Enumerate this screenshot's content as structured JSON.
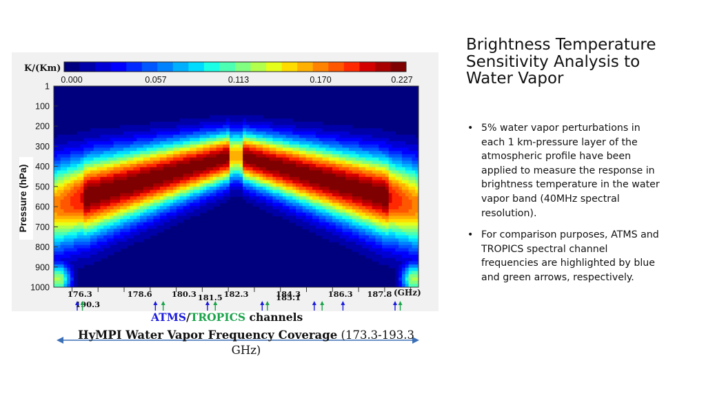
{
  "slide": {
    "title": "Brightness Temperature Sensitivity Analysis to Water Vapor",
    "bullets": [
      "5% water vapor perturbations in each 1 km-pressure layer of the atmospheric profile have been applied to measure the response in brightness temperature in the water vapor band (40MHz spectral resolution).",
      "For comparison purposes, ATMS and TROPICS spectral channel frequencies are highlighted by blue and green arrows, respectively."
    ]
  },
  "colorbar": {
    "unit_label": "K/(Km)",
    "tick_labels": [
      "0.000",
      "0.057",
      "0.113",
      "0.170",
      "0.227"
    ],
    "colors": [
      "#00007f",
      "#0000a8",
      "#0000d4",
      "#0000ff",
      "#0028ff",
      "#0056ff",
      "#0082ff",
      "#00b0ff",
      "#00dcff",
      "#1affe6",
      "#4dffb3",
      "#80ff80",
      "#b3ff4d",
      "#e6ff1a",
      "#ffdc00",
      "#ffb000",
      "#ff8200",
      "#ff5600",
      "#ff2800",
      "#d40000",
      "#a80000",
      "#7f0000"
    ]
  },
  "chart_data": {
    "type": "heatmap",
    "ylabel": "Pressure (hPa)",
    "xlabel": "(GHz)",
    "y_tick_labels": [
      "1",
      "100",
      "200",
      "300",
      "400",
      "500",
      "600",
      "700",
      "800",
      "900",
      "1000"
    ],
    "ylim": [
      1000,
      1
    ],
    "xlim": [
      175.3,
      189.3
    ],
    "value_range": [
      0.0,
      0.227
    ],
    "line_center_GHz": 182.3,
    "peak_sensitivity": 0.227,
    "freq_labels": [
      {
        "text": "176.3",
        "f": 176.3,
        "row": 0
      },
      {
        "text": "178.6",
        "f": 178.6,
        "row": 0
      },
      {
        "text": "180.3",
        "f": 180.3,
        "row": 0
      },
      {
        "text": "181.5",
        "f": 181.3,
        "row": 1
      },
      {
        "text": "182.3",
        "f": 182.3,
        "row": 0
      },
      {
        "text": "184.3",
        "f": 184.3,
        "row": 0
      },
      {
        "text": "185.1",
        "f": 184.3,
        "row": 1
      },
      {
        "text": "186.3",
        "f": 186.3,
        "row": 0
      },
      {
        "text": "187.8",
        "f": 187.8,
        "row": 0
      },
      {
        "text": "190.3",
        "f": 176.6,
        "row": 2
      }
    ],
    "atms_channels_GHz": [
      176.2,
      179.2,
      181.2,
      183.3,
      185.3,
      186.4,
      188.4
    ],
    "tropics_channels_GHz": [
      176.4,
      179.5,
      181.5,
      183.5,
      185.6,
      188.6
    ],
    "atms_color": "#1a1adb",
    "tropics_color": "#1aa34a"
  },
  "legend": {
    "atms": "ATMS",
    "sep": "/",
    "tropics": "TROPICS",
    "suffix": " channels"
  },
  "coverage": {
    "bold": "HyMPI Water Vapor Frequency Coverage",
    "rest": " (173.3-193.3 GHz)",
    "arrow_color": "#3b6fb6"
  }
}
